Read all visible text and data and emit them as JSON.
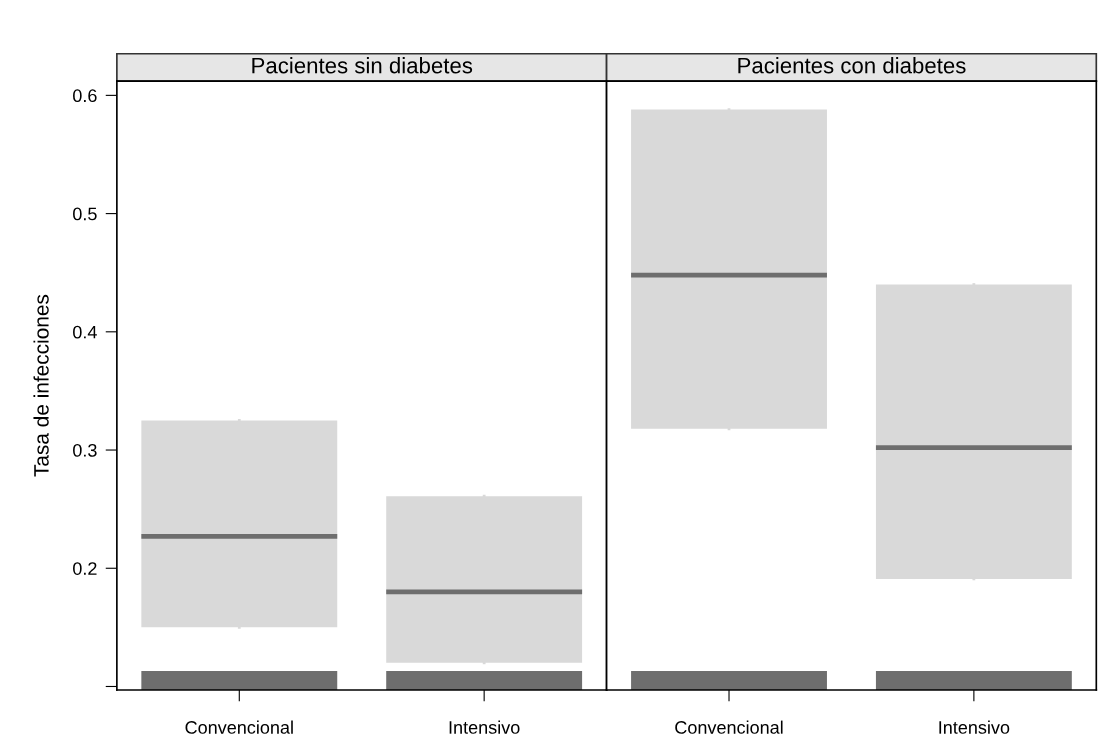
{
  "chart_data": [
    {
      "type": "box",
      "title": "Pacientes sin diabetes",
      "ylabel": "Tasa de infecciones",
      "categories": [
        "Convencional",
        "Intensivo"
      ],
      "ylim": [
        0.097,
        0.612
      ],
      "yticks": [
        {
          "value": 0.1,
          "label": null
        },
        0.2,
        0.3,
        0.4,
        0.5,
        0.6
      ],
      "grid": false,
      "series": [
        {
          "type": "bar",
          "color": "#6e6e6e",
          "base": [
            0.097,
            0.097
          ],
          "values": [
            0.016,
            0.016
          ]
        },
        {
          "color": "#d9d9d9",
          "boxes": [
            {
              "low": 0.15,
              "q1": 0.15,
              "median": 0.227,
              "q3": 0.325,
              "high": 0.325
            },
            {
              "low": 0.12,
              "q1": 0.12,
              "median": 0.18,
              "q3": 0.261,
              "high": 0.261
            }
          ]
        }
      ]
    },
    {
      "type": "box",
      "title": "Pacientes con diabetes",
      "categories": [
        "Convencional",
        "Intensivo"
      ],
      "ylim": [
        0.097,
        0.612
      ],
      "tick_labels": "x",
      "grid": false,
      "series": [
        {
          "type": "bar",
          "color": "#6e6e6e",
          "base": [
            0.097,
            0.097
          ],
          "values": [
            0.016,
            0.016
          ]
        },
        {
          "color": "#d9d9d9",
          "boxes": [
            {
              "low": 0.318,
              "q1": 0.318,
              "median": 0.448,
              "q3": 0.588,
              "high": 0.588
            },
            {
              "low": 0.191,
              "q1": 0.191,
              "median": 0.302,
              "q3": 0.44,
              "high": 0.44
            }
          ]
        }
      ]
    }
  ]
}
